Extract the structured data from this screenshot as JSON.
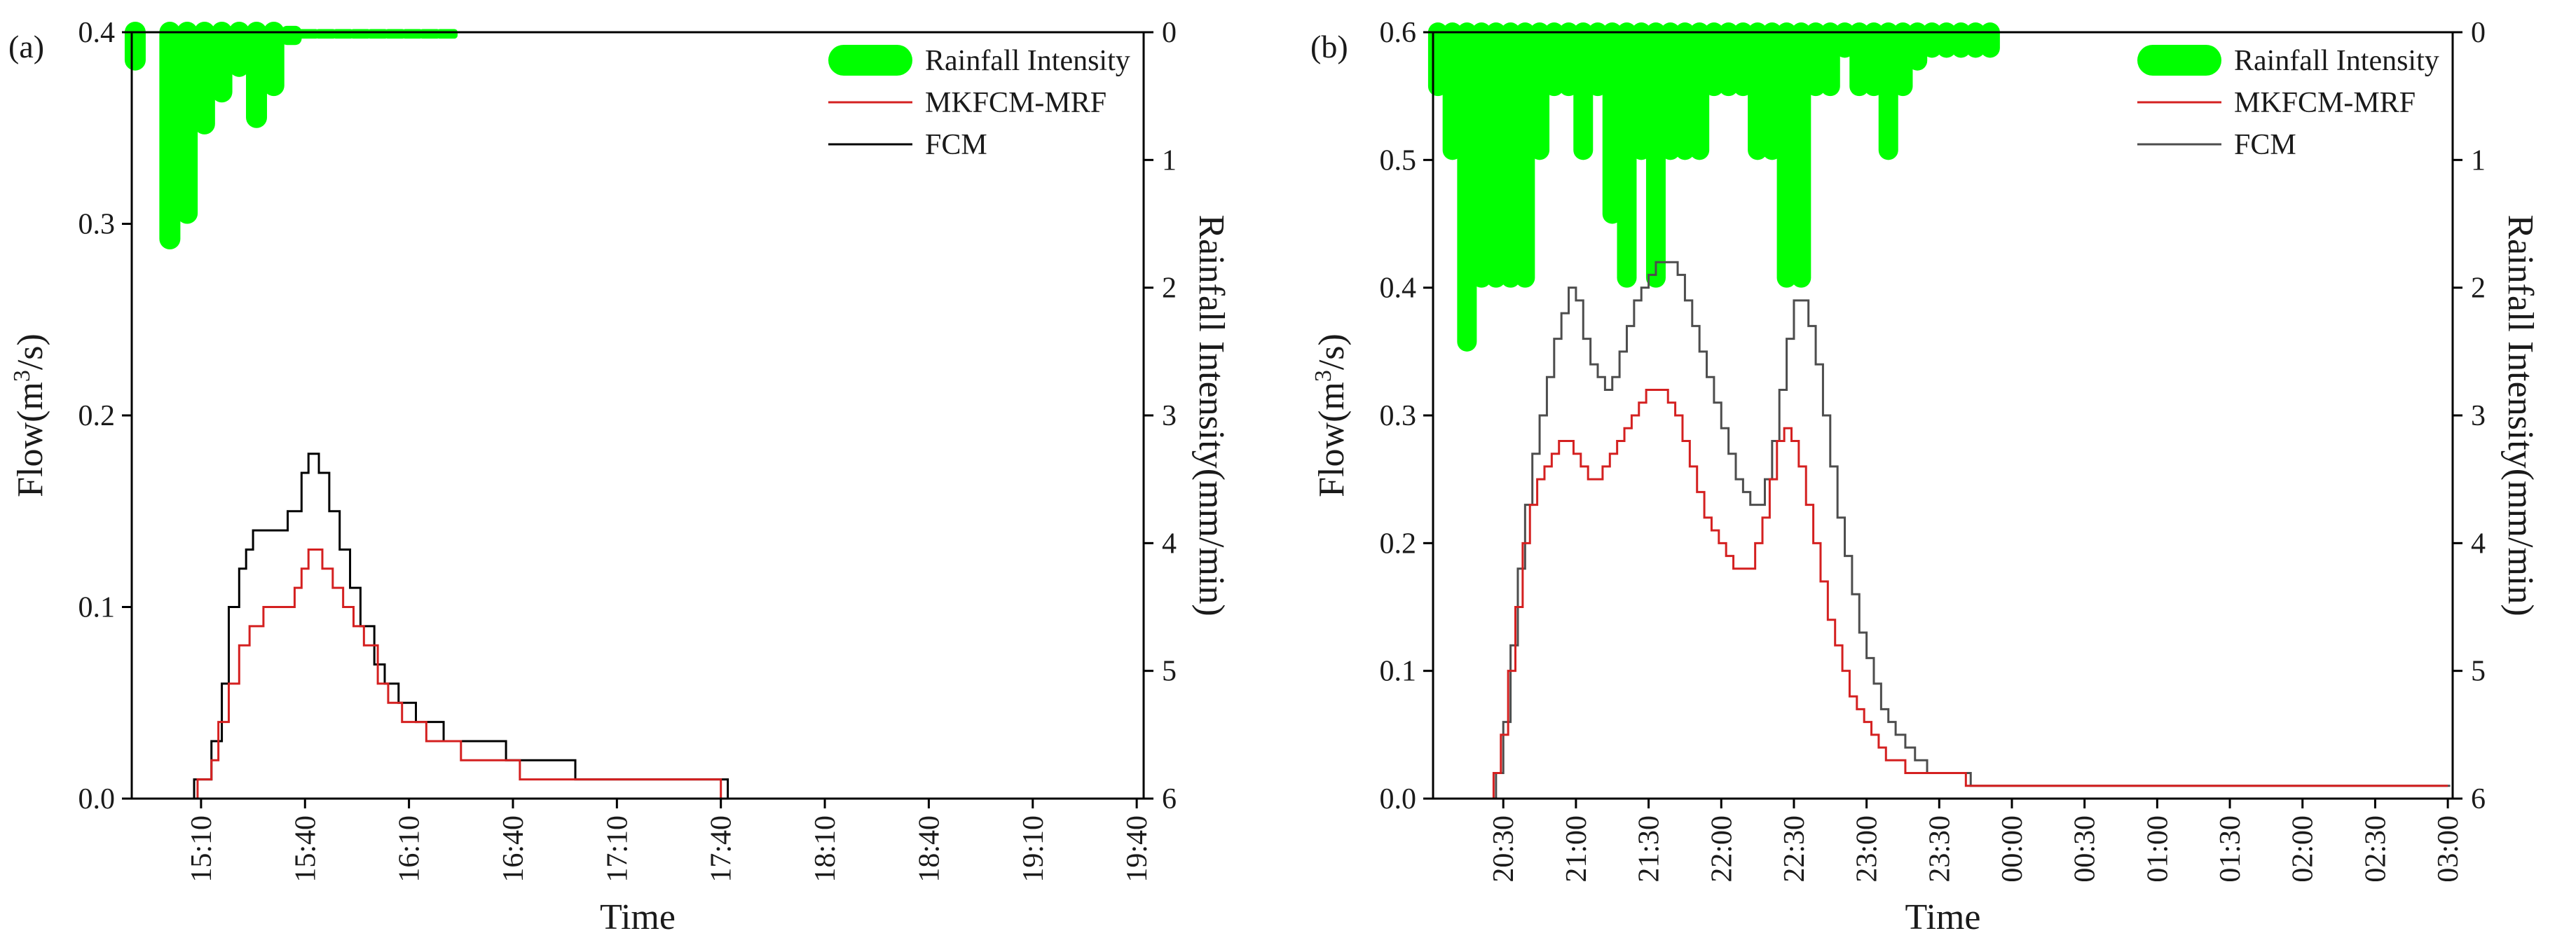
{
  "chart_data": [
    {
      "type": "line",
      "panel_label": "(a)",
      "xlabel": "Time",
      "ylabel_left": "Flow(m",
      "ylabel_left_sup": "3",
      "ylabel_left_tail": "/s)",
      "ylabel_right": "Rainfall Intensity(mm/min)",
      "x_ticks": [
        "15:10",
        "15:40",
        "16:10",
        "16:40",
        "17:10",
        "17:40",
        "18:10",
        "18:40",
        "19:10",
        "19:40"
      ],
      "x_tick_minutes": [
        910,
        940,
        970,
        1000,
        1030,
        1060,
        1090,
        1120,
        1150,
        1180
      ],
      "xlim_minutes": [
        890,
        1182
      ],
      "ylim_left": [
        0,
        0.4
      ],
      "yticks_left": [
        "0.0",
        "0.1",
        "0.2",
        "0.3",
        "0.4"
      ],
      "ylim_right": [
        0,
        6
      ],
      "yticks_right": [
        "0",
        "1",
        "2",
        "3",
        "4",
        "5",
        "6"
      ],
      "legend": [
        "Rainfall Intensity",
        "MKFCM-MRF",
        "FCM"
      ],
      "colors": {
        "rain": "#00ff00",
        "mkfcm": "#d42020",
        "fcm": "#000000"
      },
      "rain": {
        "time_minutes": [
          891,
          901,
          906,
          911,
          916,
          921,
          926,
          931,
          936,
          941,
          946,
          951,
          956,
          961,
          966,
          971,
          976,
          981
        ],
        "values": [
          0.3,
          1.7,
          1.5,
          0.8,
          0.55,
          0.35,
          0.75,
          0.5,
          0.1,
          0.05,
          0.05,
          0.05,
          0.05,
          0.05,
          0.05,
          0.05,
          0.05,
          0.05
        ]
      },
      "series": [
        {
          "name": "FCM",
          "points": [
            [
              906,
              0
            ],
            [
              908,
              0.01
            ],
            [
              913,
              0.03
            ],
            [
              916,
              0.06
            ],
            [
              918,
              0.1
            ],
            [
              921,
              0.12
            ],
            [
              923,
              0.13
            ],
            [
              925,
              0.14
            ],
            [
              935,
              0.15
            ],
            [
              939,
              0.17
            ],
            [
              941,
              0.18
            ],
            [
              944,
              0.17
            ],
            [
              947,
              0.15
            ],
            [
              950,
              0.13
            ],
            [
              953,
              0.11
            ],
            [
              956,
              0.09
            ],
            [
              960,
              0.07
            ],
            [
              963,
              0.06
            ],
            [
              967,
              0.05
            ],
            [
              972,
              0.04
            ],
            [
              980,
              0.03
            ],
            [
              998,
              0.02
            ],
            [
              1018,
              0.01
            ],
            [
              1061,
              0.01
            ],
            [
              1062,
              0.0
            ]
          ]
        },
        {
          "name": "MKFCM-MRF",
          "points": [
            [
              907,
              0
            ],
            [
              909,
              0.01
            ],
            [
              913,
              0.02
            ],
            [
              915,
              0.04
            ],
            [
              918,
              0.06
            ],
            [
              921,
              0.08
            ],
            [
              924,
              0.09
            ],
            [
              928,
              0.1
            ],
            [
              937,
              0.11
            ],
            [
              939,
              0.12
            ],
            [
              941,
              0.13
            ],
            [
              945,
              0.12
            ],
            [
              948,
              0.11
            ],
            [
              951,
              0.1
            ],
            [
              954,
              0.09
            ],
            [
              957,
              0.08
            ],
            [
              961,
              0.06
            ],
            [
              964,
              0.05
            ],
            [
              968,
              0.04
            ],
            [
              975,
              0.03
            ],
            [
              985,
              0.02
            ],
            [
              1002,
              0.01
            ],
            [
              1059,
              0.01
            ],
            [
              1060,
              0.0
            ]
          ]
        }
      ]
    },
    {
      "type": "line",
      "panel_label": "(b)",
      "xlabel": "Time",
      "ylabel_left": "Flow(m",
      "ylabel_left_sup": "3",
      "ylabel_left_tail": "/s)",
      "ylabel_right": "Rainfall Intensity(mm/min)",
      "x_ticks": [
        "20:30",
        "21:00",
        "21:30",
        "22:00",
        "22:30",
        "23:00",
        "23:30",
        "00:00",
        "00:30",
        "01:00",
        "01:30",
        "02:00",
        "02:30",
        "03:00"
      ],
      "x_tick_minutes": [
        1230,
        1260,
        1290,
        1320,
        1350,
        1380,
        1410,
        1440,
        1470,
        1500,
        1530,
        1560,
        1590,
        1620
      ],
      "xlim_minutes": [
        1201,
        1622
      ],
      "ylim_left": [
        0,
        0.6
      ],
      "yticks_left": [
        "0.0",
        "0.1",
        "0.2",
        "0.3",
        "0.4",
        "0.5",
        "0.6"
      ],
      "ylim_right": [
        0,
        6
      ],
      "yticks_right": [
        "0",
        "1",
        "2",
        "3",
        "4",
        "5",
        "6"
      ],
      "legend": [
        "Rainfall Intensity",
        "MKFCM-MRF",
        "FCM"
      ],
      "colors": {
        "rain": "#00ff00",
        "mkfcm": "#d42020",
        "fcm": "#4d4d4d"
      },
      "rain": {
        "time_minutes": [
          1203,
          1209,
          1215,
          1221,
          1227,
          1233,
          1239,
          1245,
          1251,
          1257,
          1263,
          1269,
          1275,
          1281,
          1287,
          1293,
          1299,
          1305,
          1311,
          1317,
          1323,
          1329,
          1335,
          1341,
          1347,
          1353,
          1359,
          1365,
          1371,
          1377,
          1383,
          1389,
          1395,
          1401,
          1407,
          1413,
          1419,
          1425,
          1431
        ],
        "values": [
          0.5,
          1.0,
          2.5,
          2.0,
          2.0,
          2.0,
          2.0,
          1.0,
          0.5,
          0.5,
          1.0,
          0.5,
          1.5,
          2.0,
          1.0,
          2.0,
          1.0,
          1.0,
          1.0,
          0.5,
          0.5,
          0.5,
          1.0,
          1.0,
          2.0,
          2.0,
          0.5,
          0.5,
          0.2,
          0.5,
          0.5,
          1.0,
          0.5,
          0.3,
          0.2,
          0.2,
          0.2,
          0.2,
          0.2
        ]
      },
      "series": [
        {
          "name": "FCM",
          "points": [
            [
              1224,
              0
            ],
            [
              1227,
              0.02
            ],
            [
              1230,
              0.06
            ],
            [
              1233,
              0.12
            ],
            [
              1236,
              0.18
            ],
            [
              1239,
              0.23
            ],
            [
              1242,
              0.27
            ],
            [
              1245,
              0.3
            ],
            [
              1248,
              0.33
            ],
            [
              1251,
              0.36
            ],
            [
              1254,
              0.38
            ],
            [
              1257,
              0.4
            ],
            [
              1260,
              0.39
            ],
            [
              1263,
              0.36
            ],
            [
              1266,
              0.34
            ],
            [
              1269,
              0.33
            ],
            [
              1272,
              0.32
            ],
            [
              1275,
              0.33
            ],
            [
              1278,
              0.35
            ],
            [
              1281,
              0.37
            ],
            [
              1284,
              0.39
            ],
            [
              1287,
              0.4
            ],
            [
              1290,
              0.41
            ],
            [
              1293,
              0.42
            ],
            [
              1296,
              0.42
            ],
            [
              1299,
              0.42
            ],
            [
              1302,
              0.41
            ],
            [
              1305,
              0.39
            ],
            [
              1308,
              0.37
            ],
            [
              1311,
              0.35
            ],
            [
              1314,
              0.33
            ],
            [
              1317,
              0.31
            ],
            [
              1320,
              0.29
            ],
            [
              1323,
              0.27
            ],
            [
              1326,
              0.25
            ],
            [
              1329,
              0.24
            ],
            [
              1332,
              0.23
            ],
            [
              1335,
              0.23
            ],
            [
              1338,
              0.25
            ],
            [
              1341,
              0.28
            ],
            [
              1344,
              0.32
            ],
            [
              1347,
              0.36
            ],
            [
              1350,
              0.39
            ],
            [
              1353,
              0.39
            ],
            [
              1356,
              0.37
            ],
            [
              1359,
              0.34
            ],
            [
              1362,
              0.3
            ],
            [
              1365,
              0.26
            ],
            [
              1368,
              0.22
            ],
            [
              1371,
              0.19
            ],
            [
              1374,
              0.16
            ],
            [
              1377,
              0.13
            ],
            [
              1380,
              0.11
            ],
            [
              1383,
              0.09
            ],
            [
              1386,
              0.07
            ],
            [
              1389,
              0.06
            ],
            [
              1392,
              0.05
            ],
            [
              1396,
              0.04
            ],
            [
              1400,
              0.03
            ],
            [
              1405,
              0.02
            ],
            [
              1422,
              0.02
            ],
            [
              1423,
              0.01
            ],
            [
              1621,
              0.01
            ]
          ]
        },
        {
          "name": "MKFCM-MRF",
          "points": [
            [
              1223,
              0
            ],
            [
              1226,
              0.02
            ],
            [
              1229,
              0.05
            ],
            [
              1232,
              0.1
            ],
            [
              1235,
              0.15
            ],
            [
              1238,
              0.2
            ],
            [
              1241,
              0.23
            ],
            [
              1244,
              0.25
            ],
            [
              1247,
              0.26
            ],
            [
              1250,
              0.27
            ],
            [
              1253,
              0.28
            ],
            [
              1256,
              0.28
            ],
            [
              1259,
              0.27
            ],
            [
              1262,
              0.26
            ],
            [
              1265,
              0.25
            ],
            [
              1268,
              0.25
            ],
            [
              1271,
              0.26
            ],
            [
              1274,
              0.27
            ],
            [
              1277,
              0.28
            ],
            [
              1280,
              0.29
            ],
            [
              1283,
              0.3
            ],
            [
              1286,
              0.31
            ],
            [
              1289,
              0.32
            ],
            [
              1292,
              0.32
            ],
            [
              1295,
              0.32
            ],
            [
              1298,
              0.31
            ],
            [
              1301,
              0.3
            ],
            [
              1304,
              0.28
            ],
            [
              1307,
              0.26
            ],
            [
              1310,
              0.24
            ],
            [
              1313,
              0.22
            ],
            [
              1316,
              0.21
            ],
            [
              1319,
              0.2
            ],
            [
              1322,
              0.19
            ],
            [
              1325,
              0.18
            ],
            [
              1328,
              0.18
            ],
            [
              1331,
              0.18
            ],
            [
              1334,
              0.2
            ],
            [
              1337,
              0.22
            ],
            [
              1340,
              0.25
            ],
            [
              1343,
              0.28
            ],
            [
              1346,
              0.29
            ],
            [
              1349,
              0.28
            ],
            [
              1352,
              0.26
            ],
            [
              1355,
              0.23
            ],
            [
              1358,
              0.2
            ],
            [
              1361,
              0.17
            ],
            [
              1364,
              0.14
            ],
            [
              1367,
              0.12
            ],
            [
              1370,
              0.1
            ],
            [
              1373,
              0.08
            ],
            [
              1376,
              0.07
            ],
            [
              1379,
              0.06
            ],
            [
              1382,
              0.05
            ],
            [
              1385,
              0.04
            ],
            [
              1388,
              0.03
            ],
            [
              1393,
              0.03
            ],
            [
              1396,
              0.02
            ],
            [
              1420,
              0.02
            ],
            [
              1421,
              0.01
            ],
            [
              1620,
              0.01
            ]
          ]
        }
      ]
    }
  ]
}
